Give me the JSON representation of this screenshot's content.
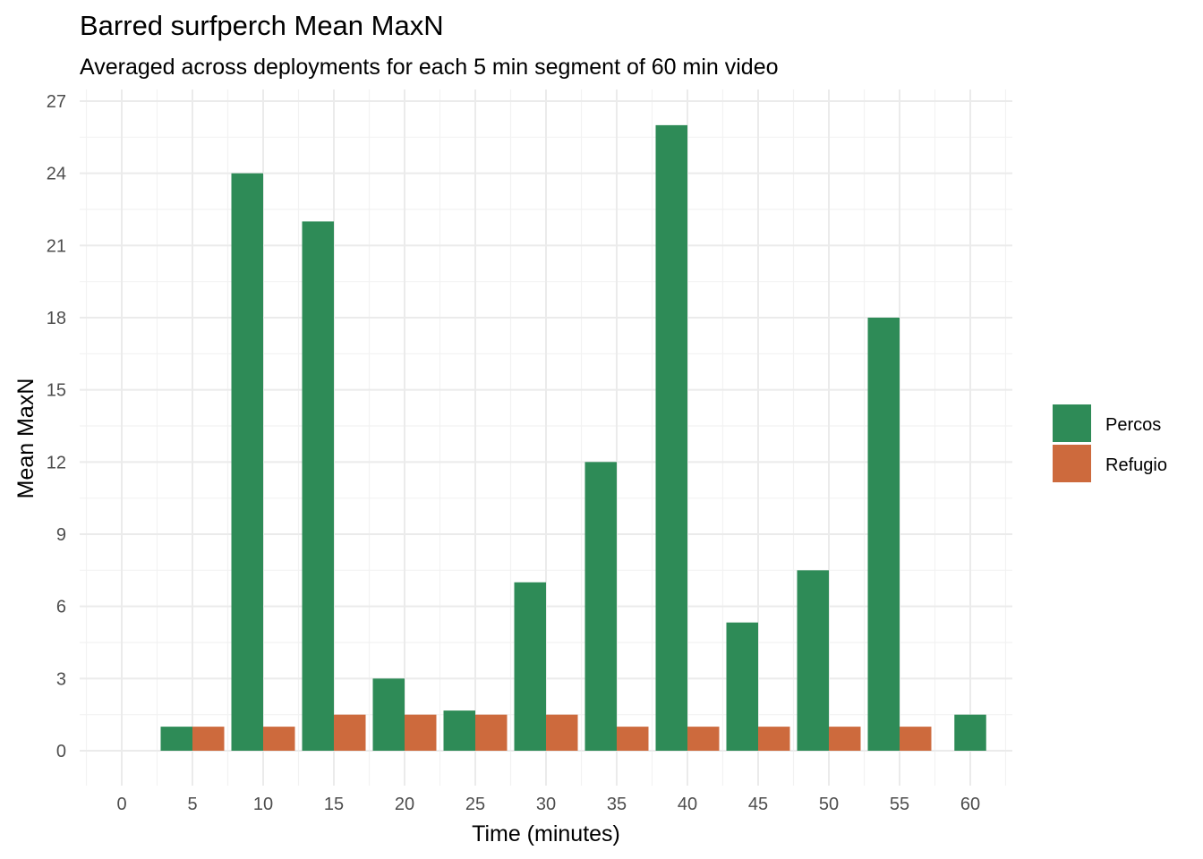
{
  "chart_data": {
    "type": "bar",
    "title": "Barred surfperch Mean MaxN",
    "subtitle": "Averaged across deployments for each 5 min segment of 60 min video",
    "xlabel": "Time (minutes)",
    "ylabel": "Mean MaxN",
    "categories": [
      "0",
      "5",
      "10",
      "15",
      "20",
      "25",
      "30",
      "35",
      "40",
      "45",
      "50",
      "55",
      "60"
    ],
    "x": [
      0,
      5,
      10,
      15,
      20,
      25,
      30,
      35,
      40,
      45,
      50,
      55,
      60
    ],
    "series": [
      {
        "name": "Percos",
        "color": "#2e8b57",
        "values": [
          null,
          1,
          24,
          22,
          3,
          1.67,
          7,
          12,
          26,
          5.33,
          7.5,
          18,
          1.5
        ]
      },
      {
        "name": "Refugio",
        "color": "#cd6a3d",
        "values": [
          null,
          1,
          1,
          1.5,
          1.5,
          1.5,
          1.5,
          1,
          1,
          1,
          1,
          1,
          null
        ]
      }
    ],
    "yticks": [
      "0",
      "3",
      "6",
      "9",
      "12",
      "15",
      "18",
      "21",
      "24",
      "27"
    ],
    "ylim": [
      0,
      27
    ],
    "legend_position": "right",
    "grid": true
  }
}
